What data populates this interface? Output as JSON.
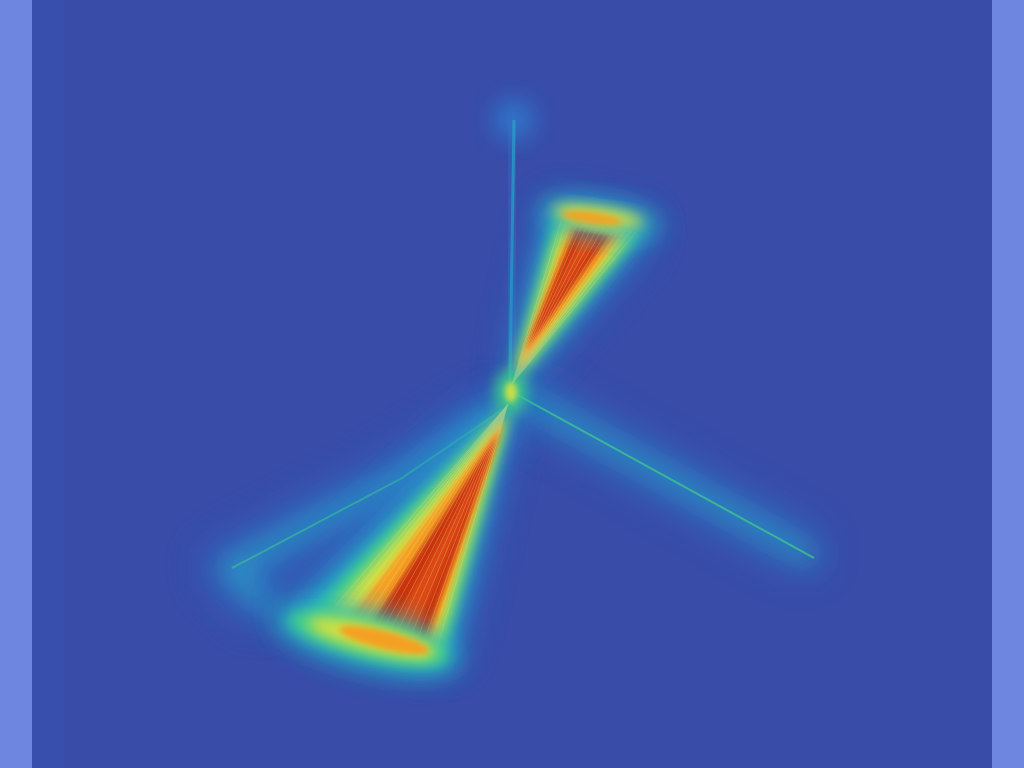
{
  "scene": {
    "type": "heatmap-visualization",
    "colors": {
      "outer_frame": "#6e86e0",
      "background": "#384ca8",
      "inner_left_shade": "#3a52b2",
      "cold": "#2f7fd0",
      "cool": "#22b0c8",
      "mid": "#3fd08a",
      "warm": "#d8e040",
      "hot": "#f4a020",
      "core": "#c83010",
      "core_bright": "#e05018",
      "hairline": "#f7d890"
    },
    "objects": [
      "vertical-axis-line",
      "diagonal-axis-line",
      "upper-cone",
      "lower-cone",
      "upper-cap",
      "lower-cap",
      "lower-left-arm"
    ]
  }
}
